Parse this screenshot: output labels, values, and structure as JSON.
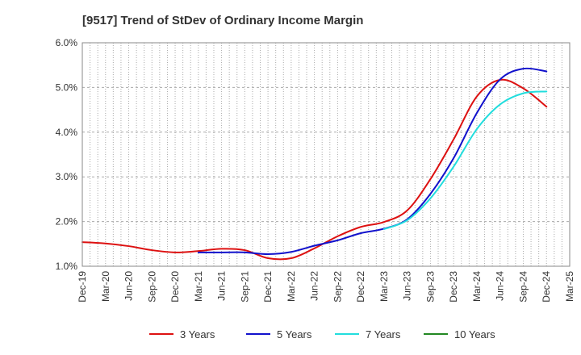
{
  "chart_data": {
    "type": "line",
    "title": "[9517]  Trend of StDev of Ordinary Income Margin",
    "xlabel": "",
    "ylabel": "",
    "x_ticks": [
      "Dec-19",
      "Mar-20",
      "Jun-20",
      "Sep-20",
      "Dec-20",
      "Mar-21",
      "Jun-21",
      "Sep-21",
      "Dec-21",
      "Mar-22",
      "Jun-22",
      "Sep-22",
      "Dec-22",
      "Mar-23",
      "Jun-23",
      "Sep-23",
      "Dec-23",
      "Mar-24",
      "Jun-24",
      "Sep-24",
      "Dec-24",
      "Mar-25"
    ],
    "y_ticks": [
      "1.0%",
      "2.0%",
      "3.0%",
      "4.0%",
      "5.0%",
      "6.0%"
    ],
    "ylim": [
      1.0,
      6.0
    ],
    "y_unit": "%",
    "grid": true,
    "legend_position": "bottom",
    "series": [
      {
        "name": "3 Years",
        "color": "#dd1111",
        "x": [
          "Dec-19",
          "Mar-20",
          "Jun-20",
          "Sep-20",
          "Dec-20",
          "Mar-21",
          "Jun-21",
          "Sep-21",
          "Dec-21",
          "Mar-22",
          "Jun-22",
          "Sep-22",
          "Dec-22",
          "Mar-23",
          "Jun-23",
          "Sep-23",
          "Dec-23",
          "Mar-24",
          "Jun-24",
          "Sep-24",
          "Dec-24"
        ],
        "values": [
          1.54,
          1.51,
          1.45,
          1.36,
          1.31,
          1.34,
          1.39,
          1.36,
          1.18,
          1.18,
          1.4,
          1.67,
          1.88,
          1.99,
          2.25,
          2.95,
          3.84,
          4.8,
          5.17,
          4.98,
          4.57
        ]
      },
      {
        "name": "5 Years",
        "color": "#1111cc",
        "x": [
          "Mar-21",
          "Jun-21",
          "Sep-21",
          "Dec-21",
          "Mar-22",
          "Jun-22",
          "Sep-22",
          "Dec-22",
          "Mar-23",
          "Jun-23",
          "Sep-23",
          "Dec-23",
          "Mar-24",
          "Jun-24",
          "Sep-24",
          "Dec-24"
        ],
        "values": [
          1.31,
          1.31,
          1.31,
          1.27,
          1.32,
          1.46,
          1.58,
          1.74,
          1.84,
          2.05,
          2.62,
          3.42,
          4.43,
          5.18,
          5.42,
          5.36
        ]
      },
      {
        "name": "7 Years",
        "color": "#22dddd",
        "x": [
          "Mar-23",
          "Jun-23",
          "Sep-23",
          "Dec-23",
          "Mar-24",
          "Jun-24",
          "Sep-24",
          "Dec-24"
        ],
        "values": [
          1.83,
          2.03,
          2.52,
          3.23,
          4.07,
          4.62,
          4.87,
          4.91
        ]
      },
      {
        "name": "10 Years",
        "color": "#228822",
        "x": [],
        "values": []
      }
    ]
  }
}
